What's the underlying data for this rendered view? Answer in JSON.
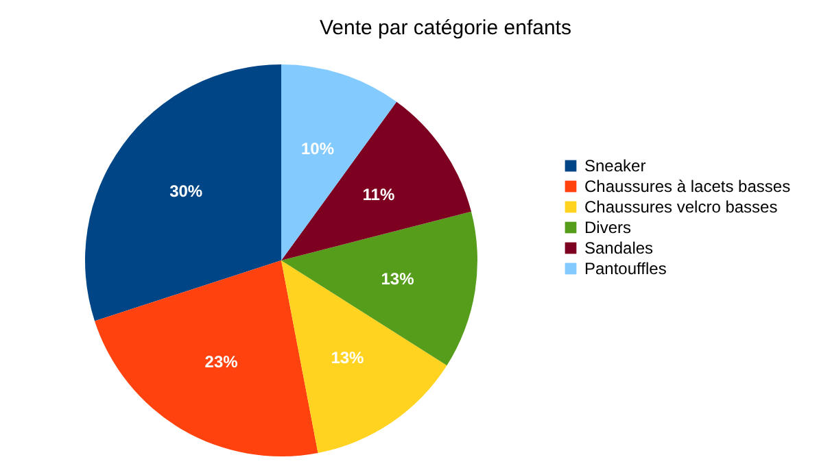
{
  "chart_data": {
    "type": "pie",
    "title": "Vente par catégorie enfants",
    "categories": [
      "Sneaker",
      "Chaussures à lacets basses",
      "Chaussures velcro basses",
      "Divers",
      "Sandales",
      "Pantouffles"
    ],
    "values": [
      30,
      23,
      13,
      13,
      11,
      10
    ],
    "colors": [
      "#004586",
      "#ff420e",
      "#ffd320",
      "#579d1c",
      "#7e0021",
      "#83caff"
    ],
    "value_labels": [
      "30%",
      "23%",
      "13%",
      "13%",
      "11%",
      "10%"
    ],
    "legend": "right"
  }
}
